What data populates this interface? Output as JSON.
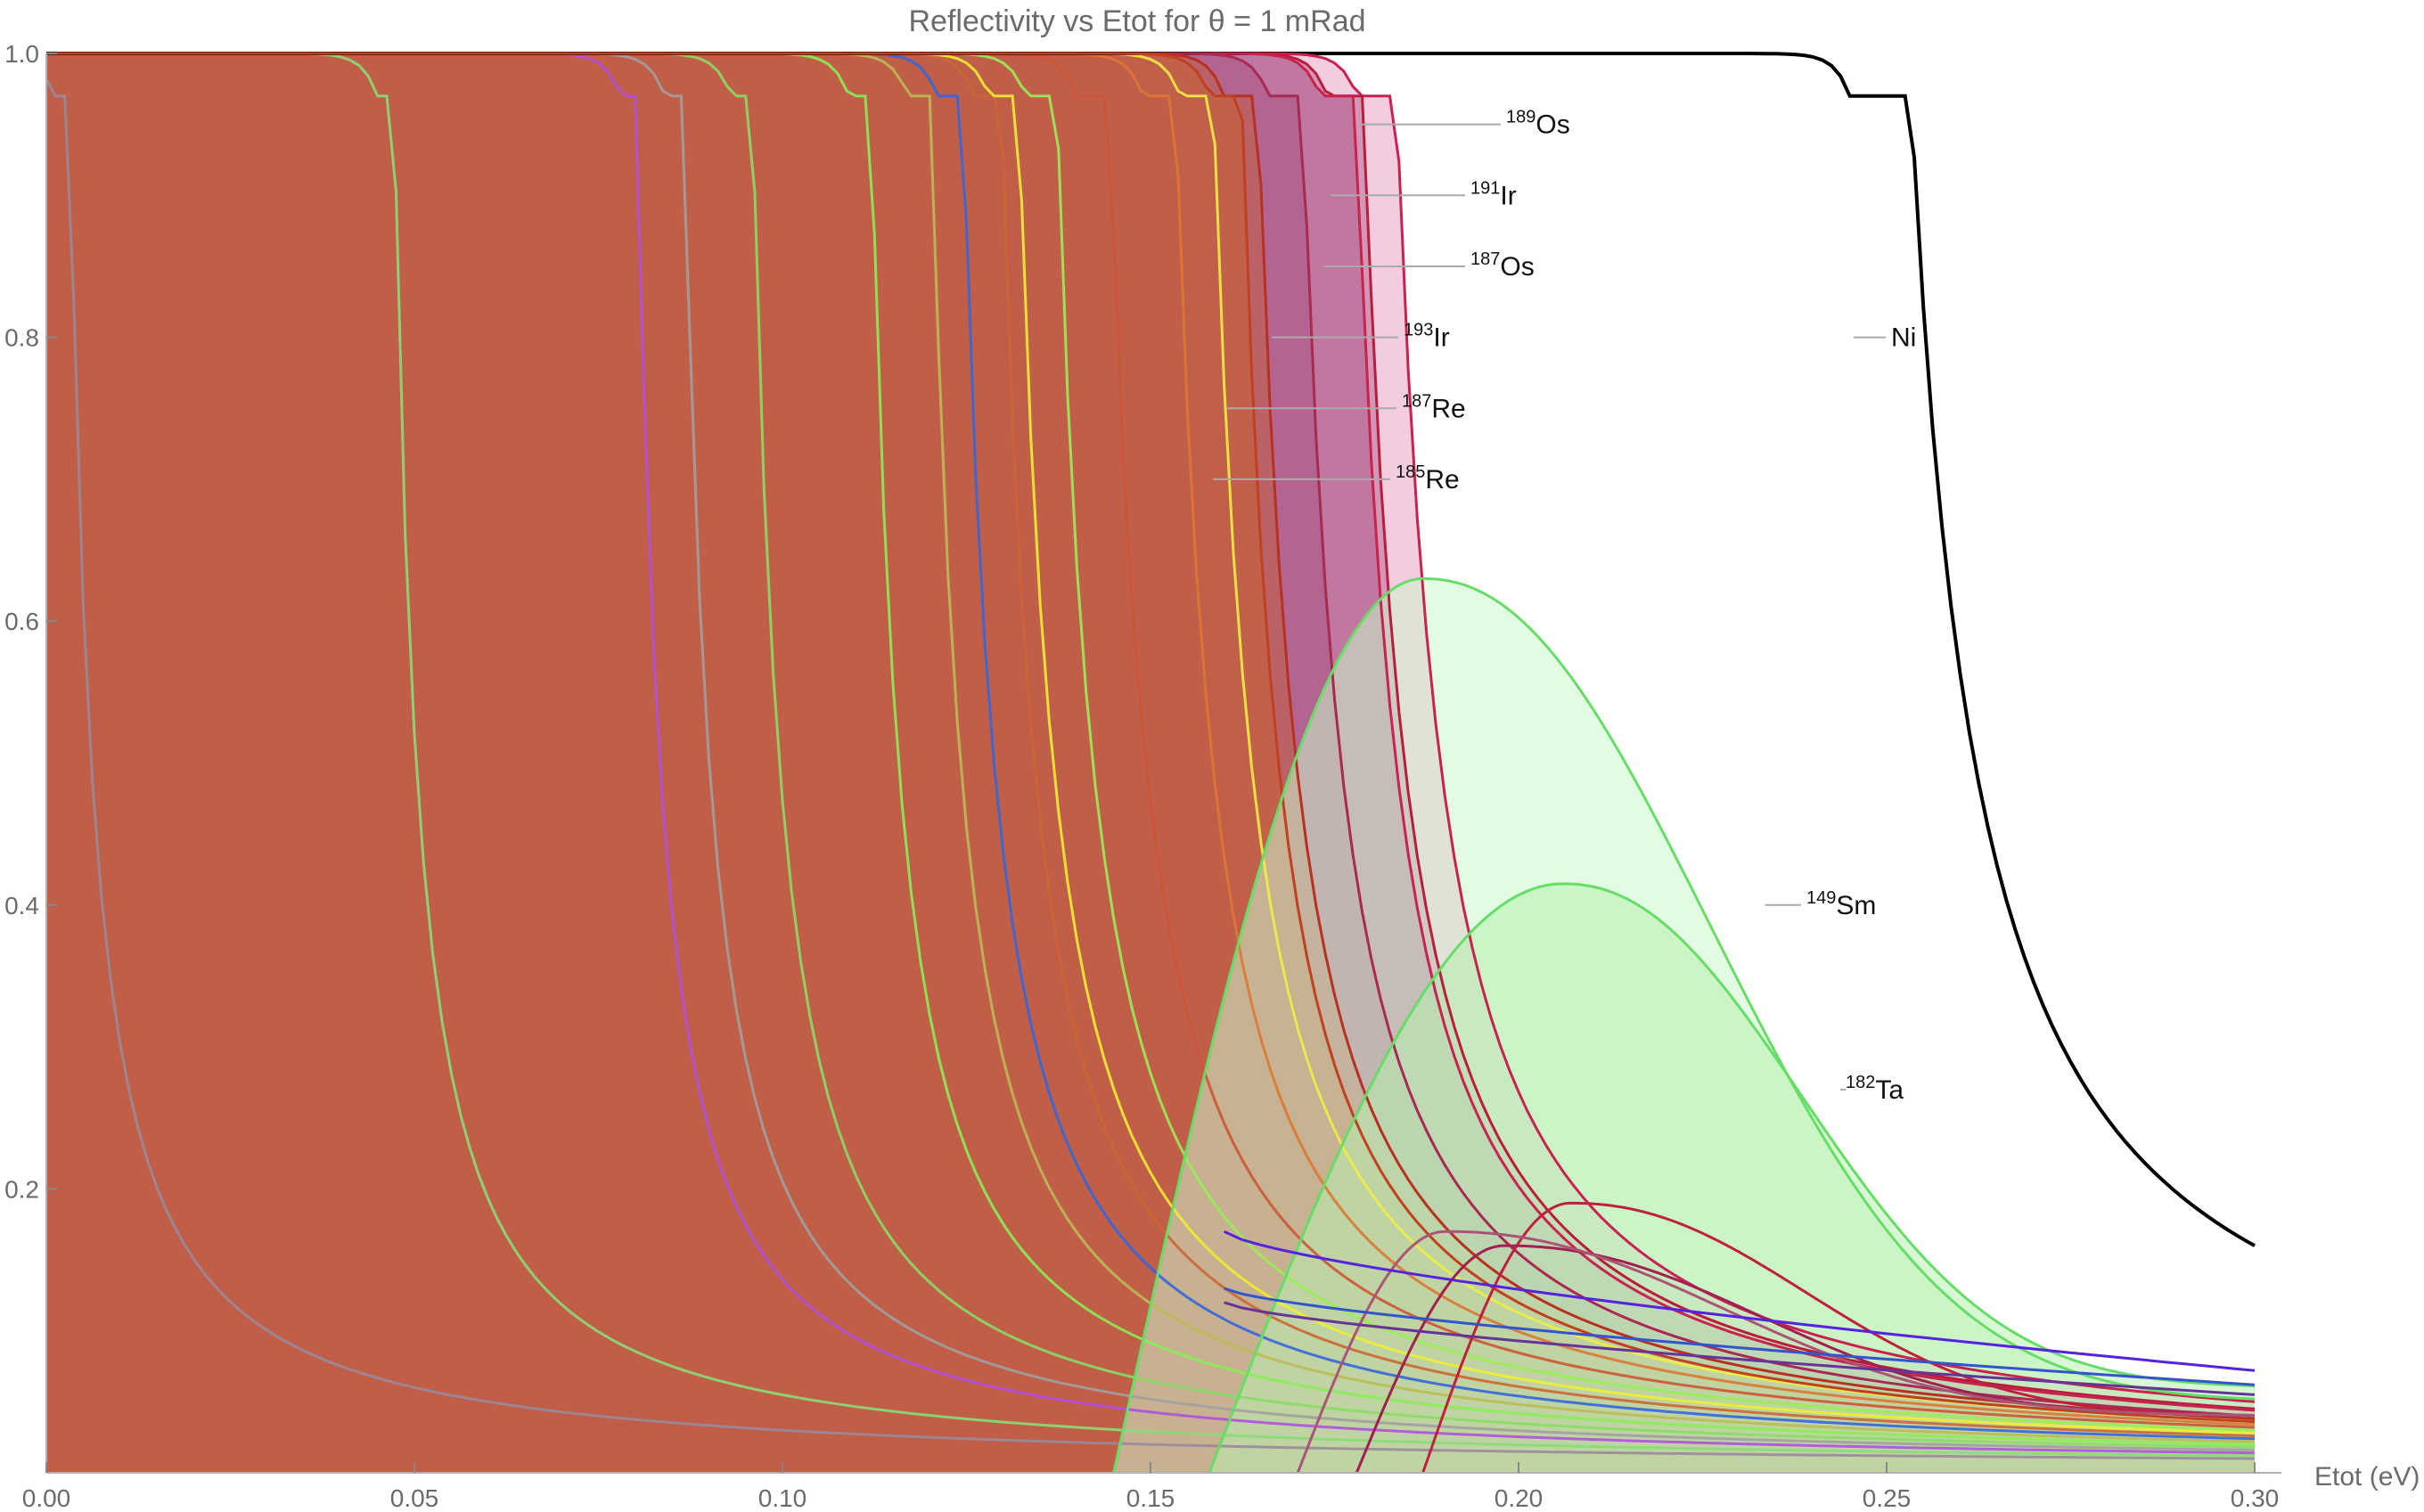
{
  "chart_data": {
    "type": "area",
    "title": "Reflectivity vs Etot for θ = 1 mRad",
    "xlabel": "Etot (eV)",
    "ylabel": "",
    "xlim": [
      0,
      0.3
    ],
    "ylim": [
      0,
      1.0
    ],
    "x_ticks": [
      "0.00",
      "0.05",
      "0.10",
      "0.15",
      "0.20",
      "0.25",
      "0.30"
    ],
    "y_ticks": [
      "0.2",
      "0.4",
      "0.6",
      "0.8",
      "1.0"
    ],
    "grid": false,
    "series": [
      {
        "name": "Ni",
        "kind": "step",
        "cutoff": 0.245,
        "tail_end": 0.16,
        "fill": false,
        "stroke": "#000000"
      },
      {
        "name": "189Os",
        "kind": "step",
        "cutoff": 0.178,
        "tail_end": 0.05,
        "fill": true,
        "fill_color": "#e89bc0",
        "stroke": "#c8224f"
      },
      {
        "name": "191Ir",
        "kind": "step",
        "cutoff": 0.174,
        "tail_end": 0.045,
        "fill": true,
        "fill_color": "#b36090",
        "stroke": "#b81d3c"
      },
      {
        "name": "187Os",
        "kind": "step",
        "cutoff": 0.173,
        "tail_end": 0.044,
        "fill": true,
        "fill_color": "#b05a8a",
        "stroke": "#c8224f"
      },
      {
        "name": "193Ir",
        "kind": "step",
        "cutoff": 0.166,
        "tail_end": 0.04,
        "fill": true,
        "fill_color": "#a85080",
        "stroke": "#a82a50"
      },
      {
        "name": "187Re",
        "kind": "step",
        "cutoff": 0.16,
        "tail_end": 0.038,
        "fill": true,
        "fill_color": "#c06040",
        "stroke": "#b83020"
      },
      {
        "name": "185Re",
        "kind": "step",
        "cutoff": 0.158,
        "tail_end": 0.036,
        "fill": true,
        "fill_color": "#c86030",
        "stroke": "#c04020"
      },
      {
        "name": "149Sm",
        "kind": "bump",
        "peak_x": 0.187,
        "peak_y": 0.63,
        "start_x": 0.145,
        "end_y": 0.05,
        "fill": true,
        "fill_color": "#ccf5cc",
        "stroke": "#66dd66"
      },
      {
        "name": "182Ta",
        "kind": "bump",
        "peak_x": 0.206,
        "peak_y": 0.415,
        "start_x": 0.158,
        "end_y": 0.06,
        "fill": true,
        "fill_color": "#b8f0b0",
        "stroke": "#66dd66"
      }
    ],
    "background_curves": [
      {
        "cutoff": 0.001,
        "stroke": "#9a8a9a",
        "fill_color": "#9a8e88"
      },
      {
        "cutoff": 0.045,
        "stroke": "#88dd77",
        "fill_color": "#978a86"
      },
      {
        "cutoff": 0.078,
        "stroke": "#b050e0",
        "fill_color": "#997880"
      },
      {
        "cutoff": 0.084,
        "stroke": "#a0a0a0",
        "fill_color": "#95907c"
      },
      {
        "cutoff": 0.093,
        "stroke": "#88dd66",
        "fill_color": "#90957a"
      },
      {
        "cutoff": 0.109,
        "stroke": "#88ee55",
        "fill_color": "#a0a06a"
      },
      {
        "cutoff": 0.117,
        "stroke": "#bbbb55",
        "fill_color": "#b8a050"
      },
      {
        "cutoff": 0.121,
        "stroke": "#3366dd",
        "fill_color": "#aaa04a"
      },
      {
        "cutoff": 0.126,
        "stroke": "#cc6633",
        "fill_color": "#c08a40"
      },
      {
        "cutoff": 0.128,
        "stroke": "#eeee33",
        "fill_color": "#c8a030"
      },
      {
        "cutoff": 0.133,
        "stroke": "#99ee55",
        "fill_color": "#c08848"
      },
      {
        "cutoff": 0.14,
        "stroke": "#cc5533",
        "fill_color": "#c06838"
      },
      {
        "cutoff": 0.149,
        "stroke": "#dd7733",
        "fill_color": "#c86238"
      },
      {
        "cutoff": 0.154,
        "stroke": "#eeee44",
        "fill_color": "#c86030"
      }
    ],
    "minor_curves": [
      {
        "peak_x": 0.207,
        "peak_y": 0.19,
        "stroke": "#c02040"
      },
      {
        "peak_x": 0.198,
        "peak_y": 0.16,
        "stroke": "#a02050"
      },
      {
        "peak_x": 0.19,
        "peak_y": 0.17,
        "stroke": "#aa5577"
      }
    ],
    "flat_tails": [
      {
        "y0": 0.17,
        "y_end": 0.072,
        "stroke": "#5522dd"
      },
      {
        "y0": 0.13,
        "y_end": 0.062,
        "stroke": "#3355cc"
      },
      {
        "y0": 0.12,
        "y_end": 0.055,
        "stroke": "#663399"
      }
    ]
  }
}
